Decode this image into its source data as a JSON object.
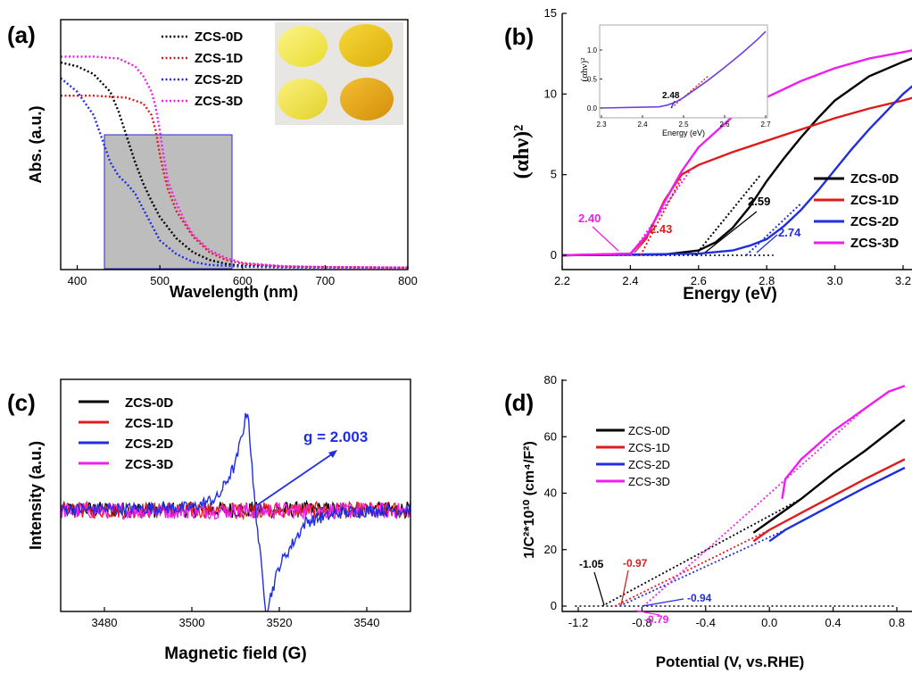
{
  "colors": {
    "ZCS-0D": "#000000",
    "ZCS-1D": "#e01b1b",
    "ZCS-2D": "#1f2fe0",
    "ZCS-3D": "#ee1fee",
    "inset_box": "#a9a9a9"
  },
  "chart_data": [
    {
      "panel": "(a)",
      "type": "line",
      "line_style": "dotted",
      "xlabel": "Wavelength (nm)",
      "ylabel": "Abs. (a.u.)",
      "xlim": [
        380,
        800
      ],
      "ylim": [
        0,
        1.1
      ],
      "xticks": [
        "400",
        "500",
        "600",
        "700",
        "800"
      ],
      "legend": [
        "ZCS-0D",
        "ZCS-1D",
        "ZCS-2D",
        "ZCS-3D"
      ],
      "legend_position": "top-right",
      "image_inset": "yellow powders photo (2x2)",
      "highlight_box_nm": [
        430,
        585
      ],
      "series": [
        {
          "name": "ZCS-0D",
          "x": [
            380,
            400,
            420,
            440,
            450,
            460,
            470,
            480,
            490,
            500,
            520,
            540,
            560,
            580,
            600,
            650,
            700,
            750,
            800
          ],
          "y": [
            1.05,
            1.03,
            0.99,
            0.9,
            0.8,
            0.67,
            0.54,
            0.43,
            0.34,
            0.26,
            0.15,
            0.08,
            0.04,
            0.02,
            0.01,
            0.005,
            0.003,
            0.002,
            0.001
          ]
        },
        {
          "name": "ZCS-1D",
          "x": [
            380,
            420,
            460,
            480,
            490,
            495,
            500,
            505,
            510,
            520,
            540,
            560,
            580,
            600,
            650,
            700,
            800
          ],
          "y": [
            0.88,
            0.88,
            0.87,
            0.84,
            0.78,
            0.7,
            0.58,
            0.48,
            0.4,
            0.29,
            0.16,
            0.08,
            0.04,
            0.02,
            0.006,
            0.003,
            0.001
          ]
        },
        {
          "name": "ZCS-2D",
          "x": [
            380,
            400,
            420,
            430,
            440,
            450,
            460,
            470,
            480,
            490,
            500,
            520,
            540,
            560,
            580,
            600,
            650,
            800
          ],
          "y": [
            0.97,
            0.9,
            0.78,
            0.66,
            0.54,
            0.47,
            0.43,
            0.38,
            0.3,
            0.22,
            0.14,
            0.07,
            0.03,
            0.015,
            0.01,
            0.005,
            0.002,
            0.001
          ]
        },
        {
          "name": "ZCS-3D",
          "x": [
            380,
            420,
            450,
            470,
            480,
            490,
            495,
            500,
            505,
            510,
            520,
            530,
            540,
            560,
            580,
            600,
            650,
            700,
            800
          ],
          "y": [
            1.08,
            1.08,
            1.07,
            1.03,
            0.98,
            0.9,
            0.82,
            0.7,
            0.56,
            0.44,
            0.33,
            0.24,
            0.17,
            0.09,
            0.05,
            0.025,
            0.008,
            0.004,
            0.001
          ]
        }
      ]
    },
    {
      "panel": "(b)",
      "type": "line",
      "xlabel": "Energy (eV)",
      "ylabel": "(αhν)²",
      "xlim": [
        2.2,
        3.25
      ],
      "ylim": [
        -1.2,
        15
      ],
      "xticks": [
        "2.2",
        "2.4",
        "2.6",
        "2.8",
        "3.0",
        "3.2"
      ],
      "yticks": [
        "0",
        "5",
        "10",
        "15"
      ],
      "legend": [
        "ZCS-0D",
        "ZCS-1D",
        "ZCS-2D",
        "ZCS-3D"
      ],
      "legend_position": "bottom-right",
      "band_gaps_eV": {
        "ZCS-0D": 2.59,
        "ZCS-1D": 2.43,
        "ZCS-2D": 2.74,
        "ZCS-3D": 2.4
      },
      "annotations": [
        "2.40",
        "2.43",
        "2.59",
        "2.74"
      ],
      "series": [
        {
          "name": "ZCS-0D",
          "x": [
            2.2,
            2.5,
            2.6,
            2.65,
            2.7,
            2.75,
            2.8,
            2.85,
            2.9,
            2.95,
            3.0,
            3.1,
            3.2,
            3.25
          ],
          "y": [
            0,
            0.05,
            0.3,
            0.8,
            1.7,
            3.0,
            4.6,
            6.0,
            7.3,
            8.5,
            9.6,
            11.1,
            12.0,
            12.4
          ]
        },
        {
          "name": "ZCS-1D",
          "x": [
            2.2,
            2.4,
            2.45,
            2.5,
            2.55,
            2.6,
            2.7,
            2.8,
            2.9,
            3.0,
            3.1,
            3.2,
            3.25
          ],
          "y": [
            0,
            0.1,
            1.2,
            3.4,
            5.0,
            5.6,
            6.4,
            7.1,
            7.8,
            8.5,
            9.1,
            9.6,
            9.9
          ]
        },
        {
          "name": "ZCS-2D",
          "x": [
            2.2,
            2.6,
            2.7,
            2.75,
            2.8,
            2.85,
            2.9,
            2.95,
            3.0,
            3.05,
            3.1,
            3.15,
            3.2,
            3.25
          ],
          "y": [
            0,
            0.1,
            0.3,
            0.6,
            1.0,
            1.8,
            2.8,
            4.0,
            5.3,
            6.6,
            7.8,
            8.9,
            10.0,
            10.9
          ]
        },
        {
          "name": "ZCS-3D",
          "x": [
            2.2,
            2.4,
            2.45,
            2.5,
            2.55,
            2.6,
            2.7,
            2.8,
            2.9,
            3.0,
            3.1,
            3.2,
            3.25
          ],
          "y": [
            0,
            0.1,
            1.3,
            3.3,
            5.2,
            6.7,
            8.6,
            9.8,
            10.8,
            11.6,
            12.2,
            12.6,
            12.8
          ]
        }
      ],
      "inset": {
        "xlabel": "Energy (eV)",
        "ylabel": "(αhν)²",
        "xlim": [
          2.3,
          2.7
        ],
        "ylim": [
          -0.1,
          1.45
        ],
        "xticks": [
          "2.3",
          "2.4",
          "2.5",
          "2.6",
          "2.7"
        ],
        "yticks": [
          "0.0",
          "0.5",
          "1.0"
        ],
        "annotation": "2.48",
        "series": {
          "x": [
            2.3,
            2.44,
            2.46,
            2.48,
            2.5,
            2.52,
            2.56,
            2.6,
            2.64,
            2.68,
            2.7
          ],
          "y": [
            0,
            0.02,
            0.05,
            0.1,
            0.18,
            0.28,
            0.48,
            0.7,
            0.93,
            1.18,
            1.32
          ]
        }
      }
    },
    {
      "panel": "(c)",
      "type": "line",
      "xlabel": "Magnetic field (G)",
      "ylabel": "Intensity (a.u.)",
      "xlim": [
        3470,
        3550
      ],
      "xticks": [
        "3480",
        "3500",
        "3520",
        "3540"
      ],
      "legend": [
        "ZCS-0D",
        "ZCS-1D",
        "ZCS-2D",
        "ZCS-3D"
      ],
      "legend_position": "top-left",
      "annotation": "g = 2.003",
      "series": [
        {
          "name": "ZCS-0D",
          "description": "flat noisy baseline"
        },
        {
          "name": "ZCS-1D",
          "description": "flat noisy baseline"
        },
        {
          "name": "ZCS-2D",
          "x": [
            3470,
            3500,
            3506,
            3510,
            3512.8,
            3514,
            3515.5,
            3517,
            3520,
            3526,
            3535,
            3550
          ],
          "y": [
            0,
            0.02,
            0.12,
            0.45,
            1.0,
            0.25,
            -0.4,
            -1.0,
            -0.55,
            -0.12,
            -0.02,
            0
          ]
        },
        {
          "name": "ZCS-3D",
          "description": "flat noisy baseline"
        }
      ]
    },
    {
      "panel": "(d)",
      "type": "line",
      "xlabel": "Potential (V, vs.RHE)",
      "ylabel": "1/C²*10¹⁰ (cm⁴/F²)",
      "xlim": [
        -1.3,
        0.85
      ],
      "ylim": [
        -8,
        80
      ],
      "xticks": [
        "-1.2",
        "-0.8",
        "-0.4",
        "0.0",
        "0.4",
        "0.8"
      ],
      "yticks": [
        "0",
        "20",
        "40",
        "60",
        "80"
      ],
      "legend": [
        "ZCS-0D",
        "ZCS-1D",
        "ZCS-2D",
        "ZCS-3D"
      ],
      "legend_position": "top-left",
      "flat_band_potentials_V": {
        "ZCS-0D": -1.05,
        "ZCS-1D": -0.97,
        "ZCS-2D": -0.94,
        "ZCS-3D": -0.79
      },
      "annotations": [
        "-1.05",
        "-0.97",
        "-0.94",
        "-0.79"
      ],
      "series": [
        {
          "name": "ZCS-0D",
          "x": [
            -0.1,
            0.0,
            0.2,
            0.4,
            0.6,
            0.85
          ],
          "y": [
            26,
            30,
            38,
            47,
            55,
            66
          ]
        },
        {
          "name": "ZCS-1D",
          "x": [
            -0.1,
            0.0,
            0.2,
            0.4,
            0.6,
            0.85
          ],
          "y": [
            23,
            27,
            33,
            39,
            45,
            52
          ]
        },
        {
          "name": "ZCS-2D",
          "x": [
            0.0,
            0.1,
            0.2,
            0.4,
            0.6,
            0.85
          ],
          "y": [
            23,
            27,
            30,
            36,
            42,
            49
          ]
        },
        {
          "name": "ZCS-3D",
          "x": [
            0.08,
            0.1,
            0.2,
            0.3,
            0.4,
            0.5,
            0.6,
            0.7,
            0.75,
            0.8,
            0.85
          ],
          "y": [
            38,
            45,
            52,
            57,
            62,
            66,
            70,
            74,
            76,
            77,
            78
          ]
        }
      ]
    }
  ]
}
